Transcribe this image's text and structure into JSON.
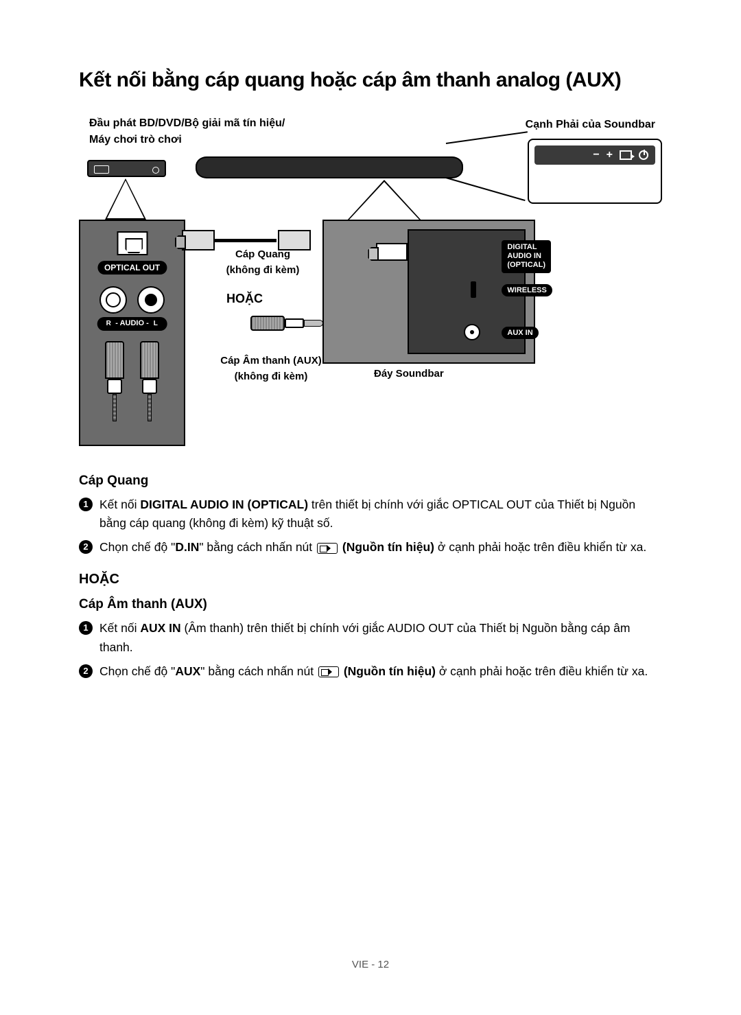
{
  "title": "Kết nối bằng cáp quang hoặc cáp âm thanh analog (AUX)",
  "diagram": {
    "top_left_label": "Đầu phát BD/DVD/Bộ giải mã tín hiệu/\nMáy chơi trò chơi",
    "top_right_label": "Cạnh Phải của Soundbar",
    "optical_out": "OPTICAL OUT",
    "audio_rl": "- AUDIO -",
    "r": "R",
    "l": "L",
    "cap_quang": "Cáp Quang",
    "khong_di_kem": "(không đi kèm)",
    "hoac": "HOẶC",
    "cap_aux": "Cáp Âm thanh (AUX)",
    "day_soundbar": "Đáy Soundbar",
    "digital_in": "DIGITAL AUDIO IN\n(OPTICAL)",
    "wireless": "WIRELESS",
    "aux_in": "AUX IN",
    "side_minus": "−",
    "side_plus": "+"
  },
  "text": {
    "sub_quang": "Cáp Quang",
    "step1_quang_a": "Kết nối ",
    "step1_quang_b": "DIGITAL AUDIO IN (OPTICAL)",
    "step1_quang_c": " trên thiết bị chính với giắc OPTICAL OUT của Thiết bị Nguồn bằng cáp quang (không đi kèm) kỹ thuật số.",
    "step2_quang_a": "Chọn chế độ \"",
    "step2_quang_b": "D.IN",
    "step2_quang_c": "\" bằng cách nhấn nút ",
    "step2_quang_d": " (Nguồn tín hiệu)",
    "step2_quang_e": " ở cạnh phải hoặc trên điều khiển từ xa.",
    "hoac_section": "HOẶC",
    "sub_aux": "Cáp Âm thanh (AUX)",
    "step1_aux_a": "Kết nối ",
    "step1_aux_b": "AUX IN",
    "step1_aux_c": " (Âm thanh) trên thiết bị chính với giắc AUDIO OUT của Thiết bị Nguồn bằng cáp âm thanh.",
    "step2_aux_a": "Chọn chế độ \"",
    "step2_aux_b": "AUX",
    "step2_aux_c": "\" bằng cách nhấn nút ",
    "step2_aux_d": " (Nguồn tín hiệu)",
    "step2_aux_e": " ở cạnh phải hoặc trên điều khiển từ xa.",
    "footer": "VIE - 12"
  },
  "styling": {
    "title_fontsize": 30,
    "body_fontsize": 17.5,
    "subheading_fontsize": 19,
    "colors": {
      "text": "#000000",
      "background": "#ffffff",
      "panel_gray": "#6b6b6b",
      "dark_panel": "#3a3a3a",
      "pill_bg": "#000000",
      "pill_text": "#ffffff"
    }
  }
}
